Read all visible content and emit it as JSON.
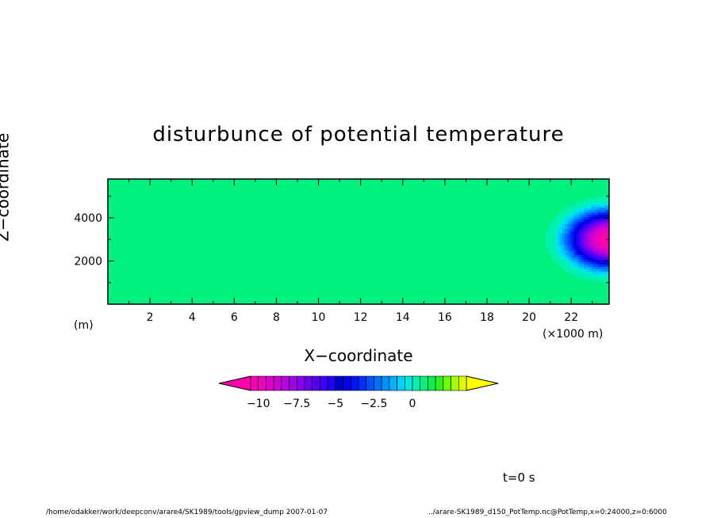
{
  "chart_data": {
    "type": "heatmap",
    "title": "disturbunce of potential temperature",
    "xlabel": "X−coordinate",
    "xunit": "(×1000 m)",
    "ylabel": "Z−coordinate",
    "yunit": "(m)",
    "xlim": [
      0,
      23.8
    ],
    "ylim": [
      0,
      5800
    ],
    "xticks": [
      "2",
      "4",
      "6",
      "8",
      "10",
      "12",
      "14",
      "16",
      "18",
      "20",
      "22"
    ],
    "yticks": [
      "2000",
      "4000"
    ],
    "colorbar": {
      "labels": [
        "−10",
        "−7.5",
        "−5",
        "−2.5",
        "0"
      ],
      "label_values": [
        -10,
        -7.5,
        -5,
        -2.5,
        0
      ],
      "levels_min": -11,
      "levels_max": 1,
      "level_step": 0.5,
      "colors": [
        "#ff00aa",
        "#f500b4",
        "#eb00be",
        "#dd00c8",
        "#cc00d4",
        "#b800dc",
        "#a000e4",
        "#8800ec",
        "#6e00f2",
        "#5400f6",
        "#3c00fa",
        "#2200ff",
        "#0000cc",
        "#0000e6",
        "#0014ff",
        "#0030ff",
        "#0050ff",
        "#0070ff",
        "#0090ff",
        "#00b0ff",
        "#00d0ff",
        "#00e8e0",
        "#00f0b0",
        "#00f080",
        "#00f050",
        "#30f020",
        "#6cff00",
        "#aaff00",
        "#dfff00",
        "#ffff00"
      ]
    },
    "field": {
      "background_level": 0.5,
      "center_x": 23.8,
      "center_z": 3000,
      "radius_x": 3.0,
      "radius_z": 2000,
      "amplitude": -11
    }
  },
  "annotations": {
    "timestamp": "t=0 s",
    "footer_left": "/home/odakker/work/deepconv/arare4/SK1989/tools/gpview_dump   2007-01-07",
    "footer_right": "../arare-SK1989_d150_PotTemp.nc@PotTemp,x=0:24000,z=0:6000"
  }
}
